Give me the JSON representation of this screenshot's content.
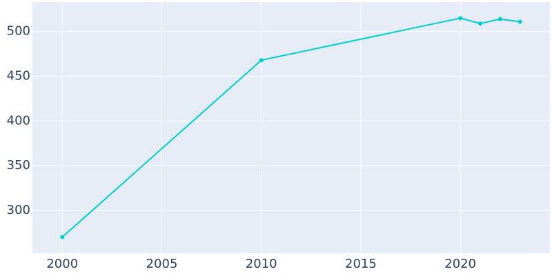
{
  "chart_data": {
    "type": "line",
    "x": [
      2000,
      2010,
      2020,
      2021,
      2022,
      2023
    ],
    "series": [
      {
        "color": "#00ced1",
        "values": [
          270,
          468,
          515,
          509,
          514,
          511
        ]
      }
    ],
    "xlim": [
      1998.5,
      2024.5
    ],
    "xticks": [
      2000,
      2005,
      2010,
      2015,
      2020
    ],
    "ylim": [
      252,
      533
    ],
    "yticks": [
      300,
      350,
      400,
      450,
      500
    ],
    "grid": true
  }
}
